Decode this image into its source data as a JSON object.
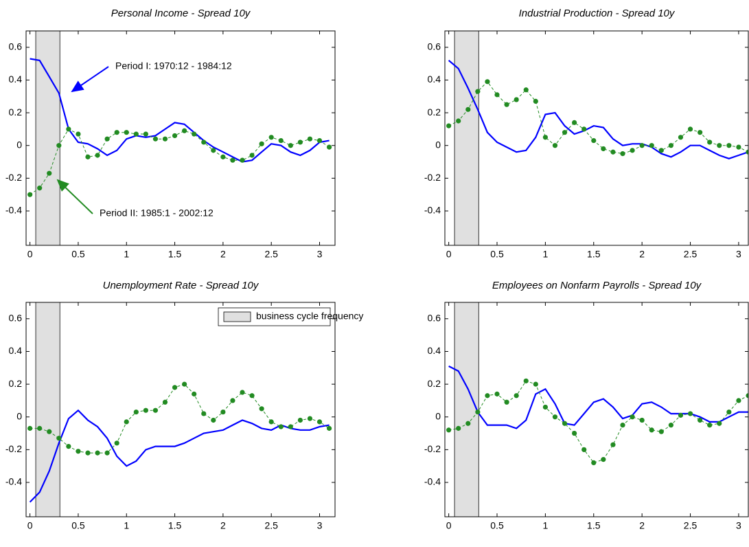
{
  "chart_data": [
    {
      "type": "line",
      "title": "Personal Income - Spread 10y",
      "x": [
        0,
        0.1,
        0.2,
        0.3,
        0.4,
        0.5,
        0.6,
        0.7,
        0.8,
        0.9,
        1.0,
        1.1,
        1.2,
        1.3,
        1.4,
        1.5,
        1.6,
        1.7,
        1.8,
        1.9,
        2.0,
        2.1,
        2.2,
        2.3,
        2.4,
        2.5,
        2.6,
        2.7,
        2.8,
        2.9,
        3.0,
        3.1
      ],
      "series": [
        {
          "color": "#0000ff",
          "style": "solid",
          "values": [
            0.53,
            0.52,
            0.42,
            0.32,
            0.1,
            0.02,
            0.01,
            -0.02,
            -0.06,
            -0.03,
            0.04,
            0.06,
            0.05,
            0.06,
            0.1,
            0.14,
            0.13,
            0.08,
            0.03,
            -0.01,
            -0.04,
            -0.07,
            -0.1,
            -0.09,
            -0.04,
            0.01,
            0.0,
            -0.04,
            -0.06,
            -0.03,
            0.02,
            0.03
          ]
        },
        {
          "color": "#228b22",
          "style": "dotted",
          "values": [
            -0.3,
            -0.26,
            -0.17,
            0.0,
            0.1,
            0.07,
            -0.07,
            -0.06,
            0.04,
            0.08,
            0.08,
            0.07,
            0.07,
            0.04,
            0.04,
            0.06,
            0.09,
            0.07,
            0.02,
            -0.03,
            -0.07,
            -0.09,
            -0.09,
            -0.06,
            0.01,
            0.05,
            0.03,
            0.0,
            0.02,
            0.04,
            0.03,
            -0.01
          ]
        }
      ],
      "annotations": [
        {
          "text": "Period I: 1970:12 - 1984:12",
          "color": "#0000ff"
        },
        {
          "text": "Period II: 1985:1 - 2002:12",
          "color": "#228b22"
        }
      ],
      "shade": [
        0.06,
        0.31
      ],
      "xlim": [
        -0.04,
        3.16
      ],
      "ylim": [
        -0.61,
        0.7
      ],
      "xticks": [
        0,
        0.5,
        1,
        1.5,
        2,
        2.5,
        3
      ],
      "yticks": [
        -0.4,
        -0.2,
        0,
        0.2,
        0.4,
        0.6
      ]
    },
    {
      "type": "line",
      "title": "Industrial Production - Spread 10y",
      "x": [
        0,
        0.1,
        0.2,
        0.3,
        0.4,
        0.5,
        0.6,
        0.7,
        0.8,
        0.9,
        1.0,
        1.1,
        1.2,
        1.3,
        1.4,
        1.5,
        1.6,
        1.7,
        1.8,
        1.9,
        2.0,
        2.1,
        2.2,
        2.3,
        2.4,
        2.5,
        2.6,
        2.7,
        2.8,
        2.9,
        3.0,
        3.1
      ],
      "series": [
        {
          "color": "#0000ff",
          "style": "solid",
          "values": [
            0.52,
            0.47,
            0.35,
            0.22,
            0.08,
            0.02,
            -0.01,
            -0.04,
            -0.03,
            0.05,
            0.19,
            0.2,
            0.12,
            0.07,
            0.09,
            0.12,
            0.11,
            0.04,
            0.0,
            0.01,
            0.01,
            -0.01,
            -0.05,
            -0.07,
            -0.04,
            0.0,
            0.0,
            -0.03,
            -0.06,
            -0.08,
            -0.06,
            -0.04
          ]
        },
        {
          "color": "#228b22",
          "style": "dotted",
          "values": [
            0.12,
            0.15,
            0.22,
            0.33,
            0.39,
            0.31,
            0.25,
            0.28,
            0.34,
            0.27,
            0.05,
            0.0,
            0.08,
            0.14,
            0.1,
            0.03,
            -0.02,
            -0.04,
            -0.05,
            -0.03,
            0.0,
            0.0,
            -0.03,
            0.0,
            0.05,
            0.1,
            0.08,
            0.02,
            0.0,
            0.0,
            -0.01,
            -0.04
          ]
        }
      ],
      "shade": [
        0.06,
        0.31
      ],
      "xlim": [
        -0.04,
        3.1
      ],
      "ylim": [
        -0.61,
        0.7
      ],
      "xticks": [
        0,
        0.5,
        1,
        1.5,
        2,
        2.5,
        3
      ],
      "yticks": [
        -0.4,
        -0.2,
        0,
        0.2,
        0.4,
        0.6
      ]
    },
    {
      "type": "line",
      "title": "Unemployment Rate - Spread 10y",
      "x": [
        0,
        0.1,
        0.2,
        0.3,
        0.4,
        0.5,
        0.6,
        0.7,
        0.8,
        0.9,
        1.0,
        1.1,
        1.2,
        1.3,
        1.4,
        1.5,
        1.6,
        1.7,
        1.8,
        1.9,
        2.0,
        2.1,
        2.2,
        2.3,
        2.4,
        2.5,
        2.6,
        2.7,
        2.8,
        2.9,
        3.0,
        3.1
      ],
      "series": [
        {
          "color": "#0000ff",
          "style": "solid",
          "values": [
            -0.52,
            -0.46,
            -0.33,
            -0.16,
            -0.01,
            0.04,
            -0.02,
            -0.06,
            -0.13,
            -0.24,
            -0.3,
            -0.27,
            -0.2,
            -0.18,
            -0.18,
            -0.18,
            -0.16,
            -0.13,
            -0.1,
            -0.09,
            -0.08,
            -0.05,
            -0.02,
            -0.04,
            -0.07,
            -0.08,
            -0.05,
            -0.07,
            -0.08,
            -0.08,
            -0.06,
            -0.05
          ]
        },
        {
          "color": "#228b22",
          "style": "dotted",
          "values": [
            -0.07,
            -0.07,
            -0.09,
            -0.13,
            -0.18,
            -0.21,
            -0.22,
            -0.22,
            -0.22,
            -0.16,
            -0.03,
            0.03,
            0.04,
            0.04,
            0.09,
            0.18,
            0.2,
            0.14,
            0.02,
            -0.02,
            0.03,
            0.1,
            0.15,
            0.13,
            0.05,
            -0.03,
            -0.06,
            -0.06,
            -0.02,
            -0.01,
            -0.03,
            -0.07
          ]
        }
      ],
      "shade": [
        0.06,
        0.31
      ],
      "shade_label": "business cycle frequency",
      "xlim": [
        -0.04,
        3.16
      ],
      "ylim": [
        -0.61,
        0.7
      ],
      "xticks": [
        0,
        0.5,
        1,
        1.5,
        2,
        2.5,
        3
      ],
      "yticks": [
        -0.4,
        -0.2,
        0,
        0.2,
        0.4,
        0.6
      ]
    },
    {
      "type": "line",
      "title": "Employees on Nonfarm Payrolls - Spread 10y",
      "x": [
        0,
        0.1,
        0.2,
        0.3,
        0.4,
        0.5,
        0.6,
        0.7,
        0.8,
        0.9,
        1.0,
        1.1,
        1.2,
        1.3,
        1.4,
        1.5,
        1.6,
        1.7,
        1.8,
        1.9,
        2.0,
        2.1,
        2.2,
        2.3,
        2.4,
        2.5,
        2.6,
        2.7,
        2.8,
        2.9,
        3.0,
        3.1
      ],
      "series": [
        {
          "color": "#0000ff",
          "style": "solid",
          "values": [
            0.31,
            0.28,
            0.17,
            0.03,
            -0.05,
            -0.05,
            -0.05,
            -0.07,
            -0.02,
            0.14,
            0.17,
            0.08,
            -0.04,
            -0.05,
            0.02,
            0.09,
            0.11,
            0.06,
            -0.01,
            0.01,
            0.08,
            0.09,
            0.06,
            0.02,
            0.02,
            0.02,
            0.0,
            -0.03,
            -0.03,
            0.0,
            0.03,
            0.03
          ]
        },
        {
          "color": "#228b22",
          "style": "dotted",
          "values": [
            -0.08,
            -0.07,
            -0.04,
            0.03,
            0.13,
            0.14,
            0.09,
            0.13,
            0.22,
            0.2,
            0.06,
            0.0,
            -0.04,
            -0.1,
            -0.2,
            -0.28,
            -0.26,
            -0.17,
            -0.05,
            0.0,
            -0.02,
            -0.08,
            -0.09,
            -0.05,
            0.01,
            0.02,
            -0.02,
            -0.05,
            -0.04,
            0.03,
            0.1,
            0.13
          ]
        }
      ],
      "shade": [
        0.06,
        0.31
      ],
      "xlim": [
        -0.04,
        3.1
      ],
      "ylim": [
        -0.61,
        0.7
      ],
      "xticks": [
        0,
        0.5,
        1,
        1.5,
        2,
        2.5,
        3
      ],
      "yticks": [
        -0.4,
        -0.2,
        0,
        0.2,
        0.4,
        0.6
      ]
    }
  ]
}
